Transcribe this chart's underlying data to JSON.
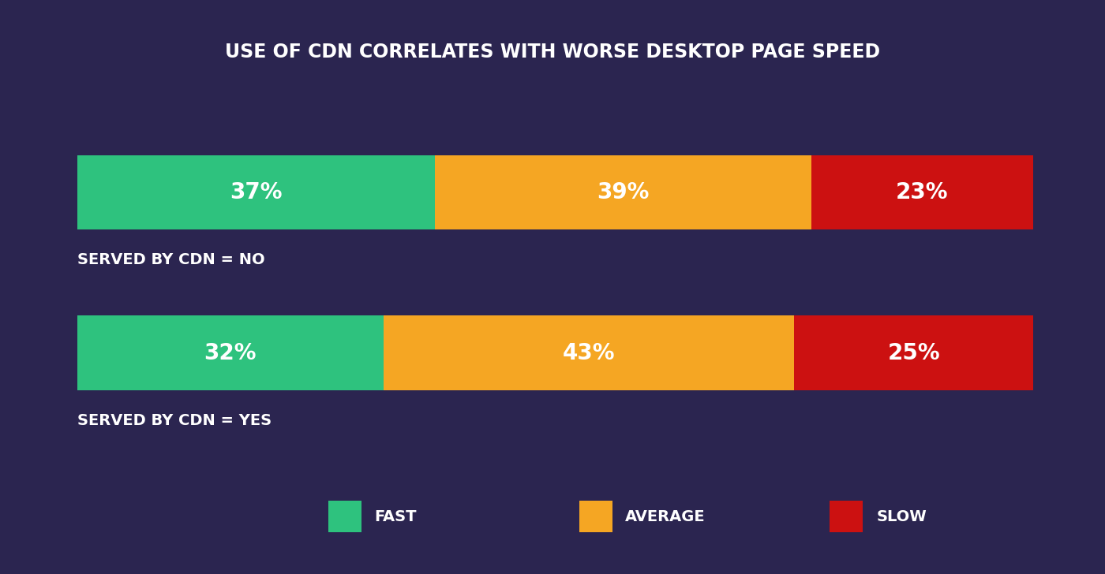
{
  "title": "USE OF CDN CORRELATES WITH WORSE DESKTOP PAGE SPEED",
  "background_color": "#2b2550",
  "text_color": "#ffffff",
  "bars": [
    {
      "label": "SERVED BY CDN = NO",
      "fast": 37,
      "average": 39,
      "slow": 23
    },
    {
      "label": "SERVED BY CDN = YES",
      "fast": 32,
      "average": 43,
      "slow": 25
    }
  ],
  "colors": {
    "fast": "#2ec27e",
    "average": "#f5a623",
    "slow": "#cc1111"
  },
  "legend_labels": [
    "FAST",
    "AVERAGE",
    "SLOW"
  ],
  "value_fontsize": 20,
  "label_fontsize": 14,
  "title_fontsize": 17
}
